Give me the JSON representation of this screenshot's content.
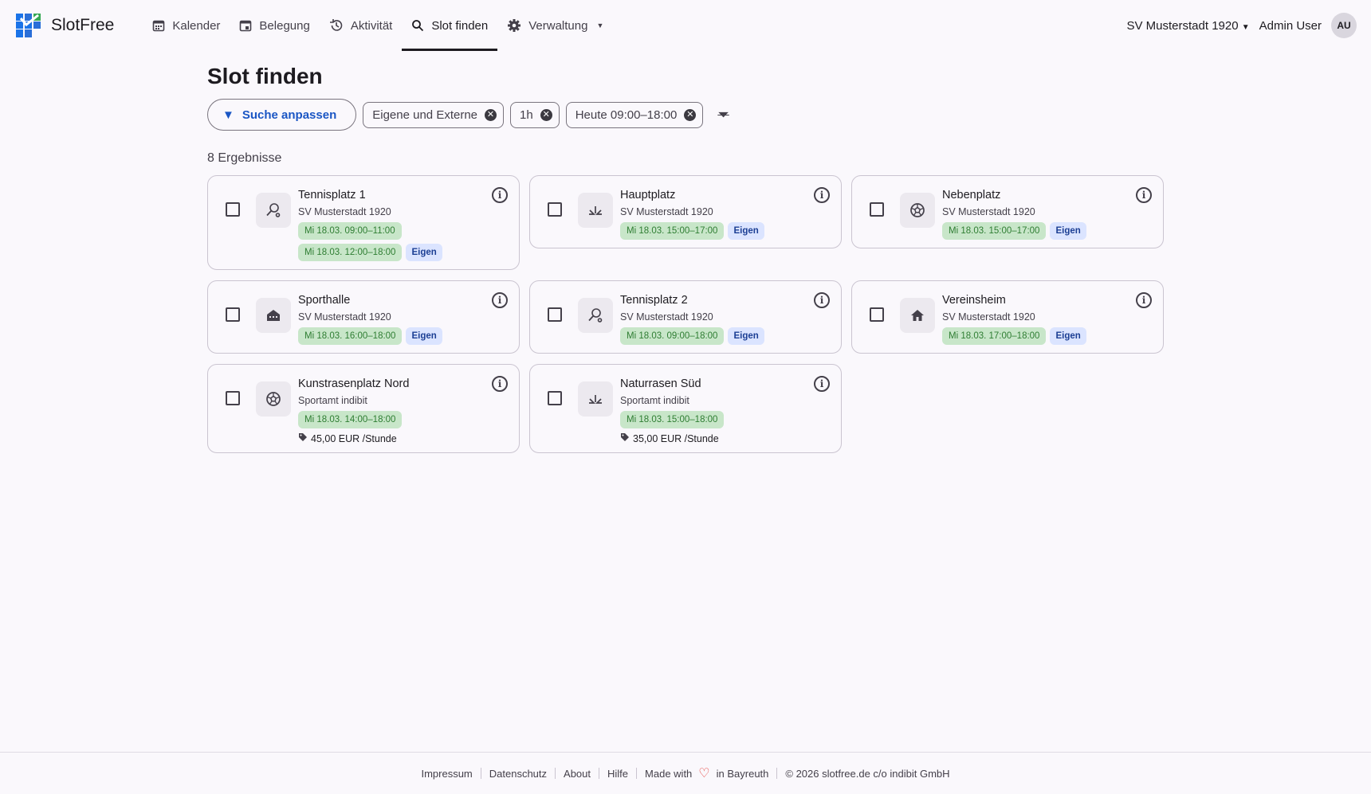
{
  "app": {
    "name": "SlotFree"
  },
  "nav": [
    {
      "label": "Kalender",
      "icon": "calendar-icon"
    },
    {
      "label": "Belegung",
      "icon": "calendar-day-icon"
    },
    {
      "label": "Aktivität",
      "icon": "history-icon"
    },
    {
      "label": "Slot finden",
      "icon": "search-icon",
      "active": true
    },
    {
      "label": "Verwaltung",
      "icon": "gear-icon"
    }
  ],
  "header": {
    "club": "SV Musterstadt 1920",
    "user": "Admin User",
    "avatar": "AU"
  },
  "page": {
    "title": "Slot finden",
    "adjust_label": "Suche anpassen",
    "chips": [
      "Eigene und Externe",
      "1h",
      "Heute 09:00–18:00"
    ],
    "result_count": "8 Ergebnisse"
  },
  "colors": {
    "accent": "#1a56c4",
    "slot_bg": "#c8e6c9",
    "own_bg": "#dbe4ff"
  },
  "results": [
    {
      "name": "Tennisplatz 1",
      "org": "SV Musterstadt 1920",
      "icon": "tennis-icon",
      "slots": [
        "Mi 18.03. 09:00–11:00",
        "Mi 18.03. 12:00–18:00"
      ],
      "badge": "Eigen"
    },
    {
      "name": "Hauptplatz",
      "org": "SV Musterstadt 1920",
      "icon": "grass-icon",
      "slots": [
        "Mi 18.03. 15:00–17:00"
      ],
      "badge": "Eigen"
    },
    {
      "name": "Nebenplatz",
      "org": "SV Musterstadt 1920",
      "icon": "soccer-ball-icon",
      "slots": [
        "Mi 18.03. 15:00–17:00"
      ],
      "badge": "Eigen"
    },
    {
      "name": "Sporthalle",
      "org": "SV Musterstadt 1920",
      "icon": "stadium-icon",
      "slots": [
        "Mi 18.03. 16:00–18:00"
      ],
      "badge": "Eigen"
    },
    {
      "name": "Tennisplatz 2",
      "org": "SV Musterstadt 1920",
      "icon": "tennis-icon",
      "slots": [
        "Mi 18.03. 09:00–18:00"
      ],
      "badge": "Eigen"
    },
    {
      "name": "Vereinsheim",
      "org": "SV Musterstadt 1920",
      "icon": "house-icon",
      "slots": [
        "Mi 18.03. 17:00–18:00"
      ],
      "badge": "Eigen"
    },
    {
      "name": "Kunstrasenplatz Nord",
      "org": "Sportamt indibit",
      "icon": "soccer-ball-icon",
      "slots": [
        "Mi 18.03. 14:00–18:00"
      ],
      "price": "45,00 EUR /Stunde"
    },
    {
      "name": "Naturrasen Süd",
      "org": "Sportamt indibit",
      "icon": "grass-icon",
      "slots": [
        "Mi 18.03. 15:00–18:00"
      ],
      "price": "35,00 EUR /Stunde"
    }
  ],
  "footer": {
    "links": [
      "Impressum",
      "Datenschutz",
      "About",
      "Hilfe"
    ],
    "made_with": "Made with",
    "made_in": "in Bayreuth",
    "copyright": "© 2026 slotfree.de c/o indibit GmbH"
  }
}
